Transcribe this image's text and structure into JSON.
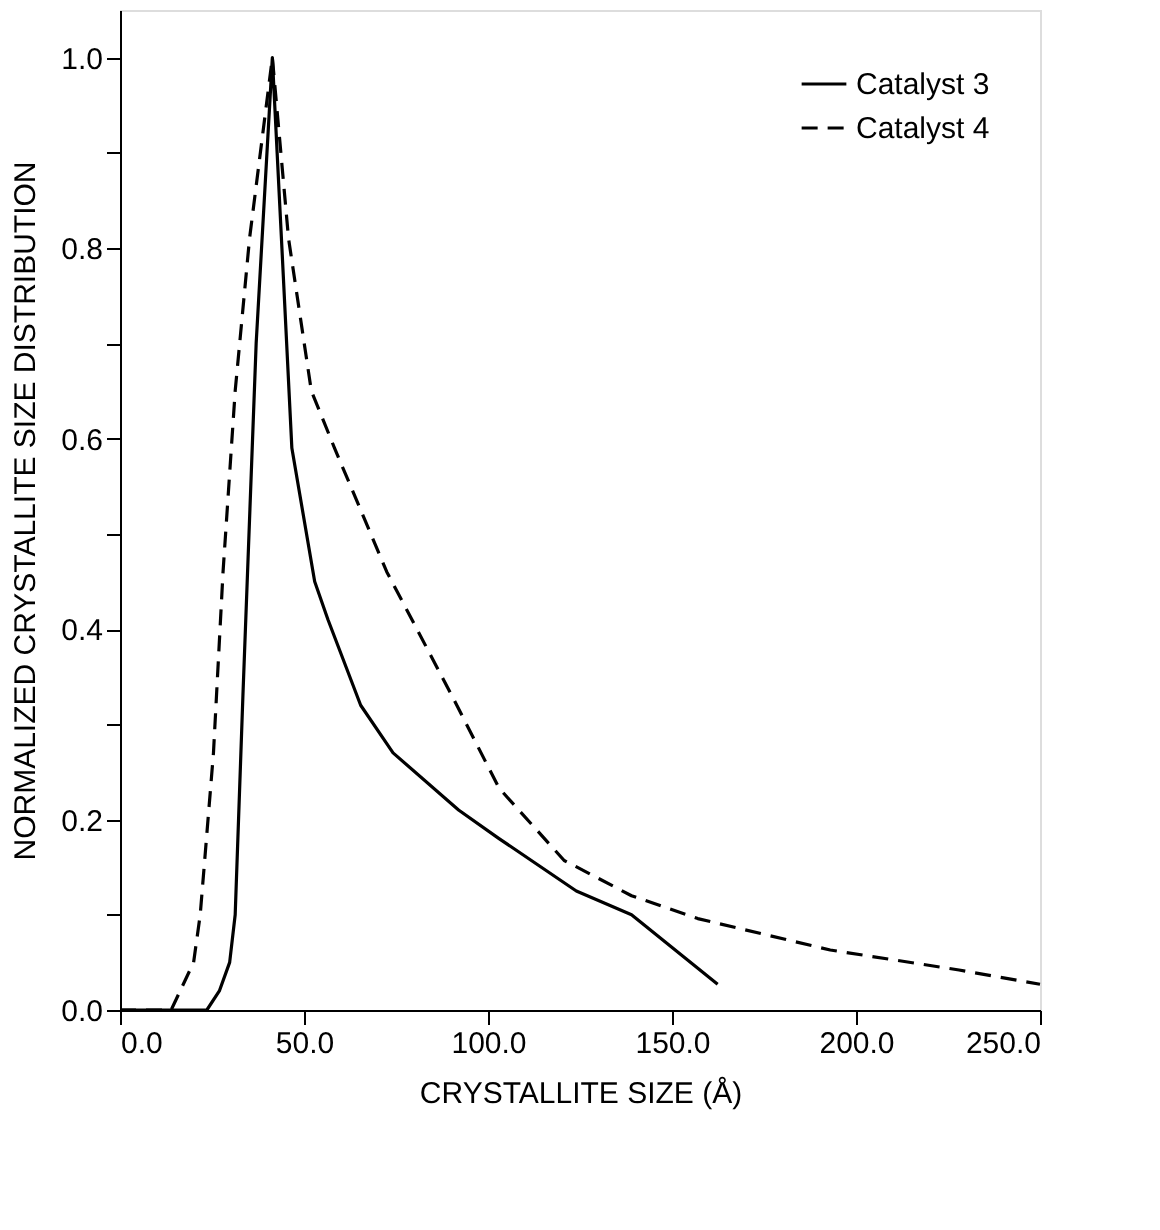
{
  "chart_data": {
    "type": "line",
    "xlabel": "CRYSTALLITE SIZE (Å)",
    "ylabel": "NORMALIZED CRYSTALLITE SIZE DISTRIBUTION",
    "xlim": [
      0,
      250
    ],
    "ylim": [
      0,
      1.05
    ],
    "xticks": [
      {
        "value": 0,
        "label": "0.0"
      },
      {
        "value": 50,
        "label": "50.0"
      },
      {
        "value": 100,
        "label": "100.0"
      },
      {
        "value": 150,
        "label": "150.0"
      },
      {
        "value": 200,
        "label": "200.0"
      },
      {
        "value": 250,
        "label": "250.0"
      }
    ],
    "yticks": [
      {
        "value": 0,
        "label": "0.0"
      },
      {
        "value": 0.1,
        "label": null
      },
      {
        "value": 0.2,
        "label": "0.2"
      },
      {
        "value": 0.3,
        "label": null
      },
      {
        "value": 0.4,
        "label": "0.4"
      },
      {
        "value": 0.5,
        "label": null
      },
      {
        "value": 0.6,
        "label": "0.6"
      },
      {
        "value": 0.7,
        "label": null
      },
      {
        "value": 0.8,
        "label": "0.8"
      },
      {
        "value": 0.9,
        "label": null
      },
      {
        "value": 1.0,
        "label": "1.0"
      }
    ],
    "grid": false,
    "legend": "top right",
    "marker": "none",
    "series": [
      {
        "name": "Catalyst 3",
        "color": "#000000",
        "line_style": "solid",
        "x": [
          0,
          23.6,
          27,
          29.8,
          31.3,
          33.4,
          37,
          41.4,
          44,
          46.7,
          52.9,
          56.5,
          65.4,
          74.2,
          92,
          103,
          124,
          139,
          162.4
        ],
        "values": [
          0,
          0,
          0.02,
          0.05,
          0.1,
          0.33,
          0.7,
          1.0,
          0.8,
          0.59,
          0.45,
          0.41,
          0.32,
          0.27,
          0.21,
          0.18,
          0.125,
          0.1,
          0.027
        ]
      },
      {
        "name": "Catalyst 4",
        "color": "#000000",
        "line_style": "dashed",
        "x": [
          0,
          13.9,
          20,
          21.8,
          25.4,
          28,
          31.3,
          35.2,
          41.4,
          45.8,
          52,
          58.3,
          72.5,
          90.2,
          103,
          120.7,
          139,
          157,
          193,
          228,
          250
        ],
        "values": [
          0,
          0,
          0.05,
          0.1,
          0.27,
          0.46,
          0.65,
          0.81,
          1.0,
          0.81,
          0.65,
          0.59,
          0.46,
          0.33,
          0.233,
          0.157,
          0.12,
          0.096,
          0.063,
          0.042,
          0.027
        ]
      }
    ]
  }
}
